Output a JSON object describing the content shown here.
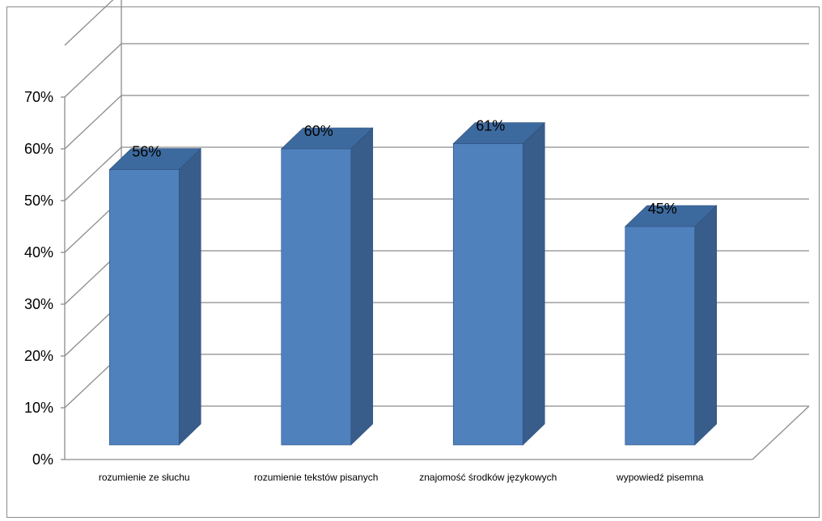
{
  "colors": {
    "bar_front": "#4f81bd",
    "bar_side": "#385d8a",
    "bar_top": "#3d6a9e",
    "bar_edge": "#2f5180",
    "grid": "#8c8c8c",
    "axis": "#8c8c8c"
  },
  "chart_data": {
    "type": "bar",
    "style": "3d-column",
    "categories": [
      "rozumienie ze słuchu",
      "rozumienie tekstów pisanych",
      "znajomość środków językowych",
      "wypowiedź pisemna"
    ],
    "values": [
      56,
      60,
      61,
      45
    ],
    "data_labels": [
      "56%",
      "60%",
      "61%",
      "45%"
    ],
    "ylim": [
      0,
      70
    ],
    "ytick_values": [
      0,
      10,
      20,
      30,
      40,
      50,
      60,
      70
    ],
    "ytick_labels": [
      "0%",
      "10%",
      "20%",
      "30%",
      "40%",
      "50%",
      "60%",
      "70%"
    ],
    "grid": true,
    "legend": "none",
    "title": "",
    "xlabel": "",
    "ylabel": ""
  }
}
